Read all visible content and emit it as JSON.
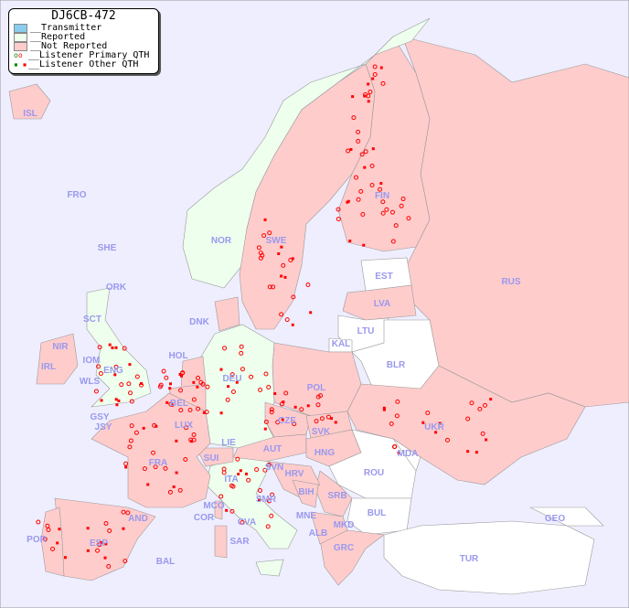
{
  "legend": {
    "title": "DJ6CB-472",
    "items": [
      {
        "label": "__Transmitter",
        "color": "#88ccee"
      },
      {
        "label": "__Reported",
        "color": "#eeffee"
      },
      {
        "label": "__Not Reported",
        "color": "#ffcccc"
      },
      {
        "label": "__Listener Primary QTH",
        "symbol": "circle"
      },
      {
        "label": "__Listener Other QTH",
        "symbol": "square"
      }
    ]
  },
  "colors": {
    "ocean": "#eeeeff",
    "not_reported": "#ffcccc",
    "reported": "#eeffee",
    "no_data": "#ffffff",
    "listener": "#ff0000",
    "listener_reported": "#008800",
    "label": "#9999ee"
  },
  "countries": [
    "ISL",
    "FRO",
    "SHE",
    "ORK",
    "NOR",
    "SWE",
    "FIN",
    "RUS",
    "EST",
    "LVA",
    "LTU",
    "KAL",
    "BLR",
    "DNK",
    "HOL",
    "DEU",
    "POL",
    "UKR",
    "IRL",
    "NIR",
    "SCT",
    "IOM",
    "WLS",
    "ENG",
    "GSY",
    "JSY",
    "BEL",
    "LUX",
    "CZE",
    "SVK",
    "AUT",
    "HNG",
    "MDA",
    "FRA",
    "SUI",
    "LIE",
    "ITA",
    "SVN",
    "HRV",
    "BIH",
    "SRB",
    "ROU",
    "MCO",
    "COR",
    "SMR",
    "CVA",
    "MNE",
    "ALB",
    "MKD",
    "BUL",
    "GEO",
    "AND",
    "POR",
    "ESP",
    "SAR",
    "BAL",
    "GRC",
    "TUR"
  ]
}
